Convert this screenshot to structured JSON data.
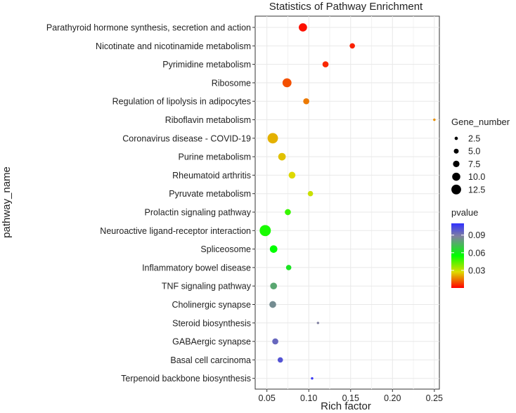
{
  "chart_data": {
    "type": "scatter",
    "title": "Statistics of Pathway Enrichment",
    "xlabel": "Rich factor",
    "ylabel": "pathway_name",
    "xlim": [
      0.036,
      0.256
    ],
    "x_ticks": [
      0.05,
      0.1,
      0.15,
      0.2,
      0.25
    ],
    "x_tick_labels": [
      "0.05",
      "0.10",
      "0.15",
      "0.20",
      "0.25"
    ],
    "grid": true,
    "points": [
      {
        "pathway": "Parathyroid hormone synthesis, secretion and action",
        "rich_factor": 0.093,
        "gene_number": 9,
        "pvalue": 0.002
      },
      {
        "pathway": "Nicotinate and nicotinamide metabolism",
        "rich_factor": 0.152,
        "gene_number": 5,
        "pvalue": 0.004
      },
      {
        "pathway": "Pyrimidine metabolism",
        "rich_factor": 0.12,
        "gene_number": 6,
        "pvalue": 0.005
      },
      {
        "pathway": "Ribosome",
        "rich_factor": 0.074,
        "gene_number": 10,
        "pvalue": 0.01
      },
      {
        "pathway": "Regulation of lipolysis in adipocytes",
        "rich_factor": 0.097,
        "gene_number": 6,
        "pvalue": 0.015
      },
      {
        "pathway": "Riboflavin metabolism",
        "rich_factor": 0.25,
        "gene_number": 1,
        "pvalue": 0.018
      },
      {
        "pathway": "Coronavirus disease - COVID-19",
        "rich_factor": 0.057,
        "gene_number": 12,
        "pvalue": 0.022
      },
      {
        "pathway": "Purine metabolism",
        "rich_factor": 0.068,
        "gene_number": 8,
        "pvalue": 0.024
      },
      {
        "pathway": "Rheumatoid arthritis",
        "rich_factor": 0.08,
        "gene_number": 7,
        "pvalue": 0.027
      },
      {
        "pathway": "Pyruvate metabolism",
        "rich_factor": 0.102,
        "gene_number": 5,
        "pvalue": 0.03
      },
      {
        "pathway": "Prolactin signaling pathway",
        "rich_factor": 0.075,
        "gene_number": 6,
        "pvalue": 0.048
      },
      {
        "pathway": "Neuroactive ligand-receptor interaction",
        "rich_factor": 0.048,
        "gene_number": 13,
        "pvalue": 0.052
      },
      {
        "pathway": "Spliceosome",
        "rich_factor": 0.058,
        "gene_number": 8,
        "pvalue": 0.055
      },
      {
        "pathway": "Inflammatory bowel disease",
        "rich_factor": 0.076,
        "gene_number": 5,
        "pvalue": 0.062
      },
      {
        "pathway": "TNF signaling pathway",
        "rich_factor": 0.058,
        "gene_number": 7,
        "pvalue": 0.078
      },
      {
        "pathway": "Cholinergic synapse",
        "rich_factor": 0.057,
        "gene_number": 7,
        "pvalue": 0.085
      },
      {
        "pathway": "Steroid biosynthesis",
        "rich_factor": 0.111,
        "gene_number": 1,
        "pvalue": 0.088
      },
      {
        "pathway": "GABAergic synapse",
        "rich_factor": 0.06,
        "gene_number": 6,
        "pvalue": 0.095
      },
      {
        "pathway": "Basal cell carcinoma",
        "rich_factor": 0.066,
        "gene_number": 5,
        "pvalue": 0.1
      },
      {
        "pathway": "Terpenoid backbone biosynthesis",
        "rich_factor": 0.104,
        "gene_number": 1,
        "pvalue": 0.108
      }
    ],
    "size_legend": {
      "title": "Gene_number",
      "values": [
        2.5,
        5.0,
        7.5,
        10.0,
        12.5
      ],
      "labels": [
        "2.5",
        "5.0",
        "7.5",
        "10.0",
        "12.5"
      ]
    },
    "color_legend": {
      "title": "pvalue",
      "range": [
        0,
        0.11
      ],
      "ticks": [
        0.03,
        0.06,
        0.09
      ],
      "tick_labels": [
        "0.03",
        "0.06",
        "0.09"
      ],
      "low_color": "#ff0000",
      "mid_color": "#00ff00",
      "high_color": "#0000ff"
    },
    "panel_background": "#ffffff",
    "grid_color": "#e8e8e8"
  }
}
